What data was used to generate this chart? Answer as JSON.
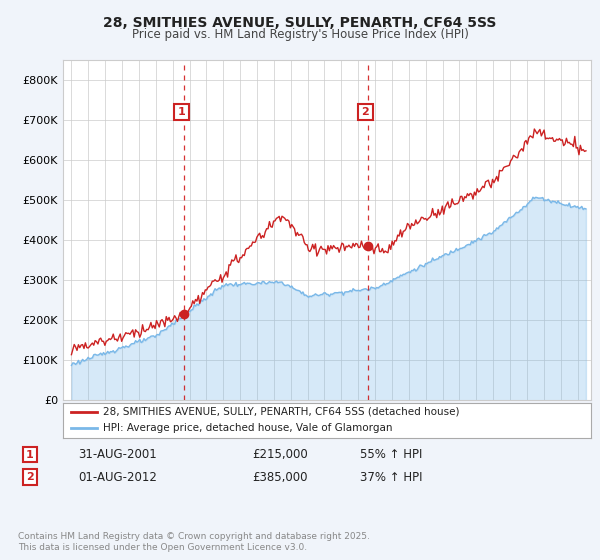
{
  "title1": "28, SMITHIES AVENUE, SULLY, PENARTH, CF64 5SS",
  "title2": "Price paid vs. HM Land Registry's House Price Index (HPI)",
  "legend_line1": "28, SMITHIES AVENUE, SULLY, PENARTH, CF64 5SS (detached house)",
  "legend_line2": "HPI: Average price, detached house, Vale of Glamorgan",
  "marker1_label": "1",
  "marker1_date": "31-AUG-2001",
  "marker1_price": "£215,000",
  "marker1_hpi": "55% ↑ HPI",
  "marker1_x": 2001.67,
  "marker1_y": 215000,
  "marker2_label": "2",
  "marker2_date": "01-AUG-2012",
  "marker2_price": "£385,000",
  "marker2_hpi": "37% ↑ HPI",
  "marker2_x": 2012.58,
  "marker2_y": 385000,
  "ylim": [
    0,
    850000
  ],
  "yticks": [
    0,
    100000,
    200000,
    300000,
    400000,
    500000,
    600000,
    700000,
    800000
  ],
  "xlim": [
    1994.5,
    2025.8
  ],
  "background_color": "#f0f4fa",
  "plot_bg_color": "#ffffff",
  "red_color": "#cc2222",
  "blue_color": "#7ab8e8",
  "footer": "Contains HM Land Registry data © Crown copyright and database right 2025.\nThis data is licensed under the Open Government Licence v3.0."
}
